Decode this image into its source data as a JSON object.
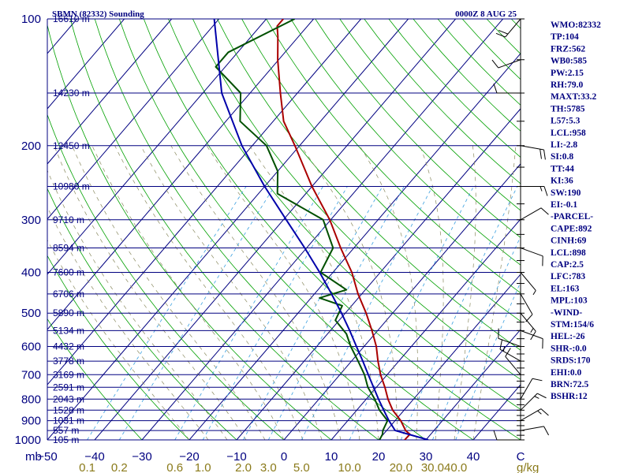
{
  "header": {
    "station": "SBMN (82332) Sounding",
    "time": "0000Z  8 AUG 25"
  },
  "axes": {
    "pressure_unit": "mb",
    "mixing_ratio_unit": "g/kg",
    "temperature_unit": "C",
    "pressure_ticks": [
      100,
      200,
      300,
      400,
      500,
      600,
      700,
      800,
      900,
      1000
    ],
    "temperature_ticks": [
      -50,
      -40,
      -30,
      -20,
      -10,
      0,
      10,
      20,
      30,
      40
    ],
    "mixing_ratio_labels": [
      "0.1",
      "0.2",
      "0.6",
      "1.0",
      "2.0",
      "3.0",
      "5.0",
      "10.0",
      "20.0",
      "30.0",
      "40.0"
    ],
    "pressure_range": [
      100,
      1000
    ],
    "temperature_range_at_surface": [
      -50,
      50
    ]
  },
  "heights": [
    {
      "p": 100,
      "label": "16610 m"
    },
    {
      "p": 150,
      "label": "14230 m"
    },
    {
      "p": 200,
      "label": "12450 m"
    },
    {
      "p": 250,
      "label": "10980 m"
    },
    {
      "p": 300,
      "label": "9710 m"
    },
    {
      "p": 350,
      "label": "8594 m"
    },
    {
      "p": 400,
      "label": "7600 m"
    },
    {
      "p": 450,
      "label": "6706 m"
    },
    {
      "p": 500,
      "label": "5890 m"
    },
    {
      "p": 550,
      "label": "5134 m"
    },
    {
      "p": 600,
      "label": "4432 m"
    },
    {
      "p": 650,
      "label": "3778 m"
    },
    {
      "p": 700,
      "label": "3169 m"
    },
    {
      "p": 750,
      "label": "2591 m"
    },
    {
      "p": 800,
      "label": "2043 m"
    },
    {
      "p": 850,
      "label": "1528 m"
    },
    {
      "p": 900,
      "label": "1031 m"
    },
    {
      "p": 950,
      "label": "557 m"
    },
    {
      "p": 1000,
      "label": "105 m"
    }
  ],
  "indices": [
    "WMO:82332",
    "TP:104",
    "FRZ:562",
    "WB0:585",
    "PW:2.15",
    "RH:79.0",
    "MAXT:33.2",
    "TH:5785",
    "L57:5.3",
    "LCL:958",
    "LI:-2.8",
    "SI:0.8",
    "TT:44",
    "KI:36",
    "SW:190",
    "EI:-0.1",
    "-PARCEL-",
    "CAPE:892",
    "CINH:69",
    "LCL:898",
    "CAP:2.5",
    "LFC:783",
    "EL:163",
    "MPL:103",
    "-WIND-",
    "STM:154/6",
    "HEL:-26",
    "SHR-:0.0",
    "SRDS:170",
    "EHI:0.0",
    "BRN:72.5",
    "BSHR:12"
  ],
  "chart_data": {
    "type": "line",
    "title": "SBMN (82332) Sounding",
    "xlabel": "C",
    "ylabel": "mb",
    "ylim": [
      1000,
      100
    ],
    "grid": true,
    "colors": {
      "isobar": "#000080",
      "isotherm": "#000080",
      "dry_adiabat": "#00a000",
      "moist_adiabat": "#8a8a60",
      "mixing_ratio": "#3aa0e0",
      "temperature": "#aa0000",
      "dewpoint": "#005000",
      "parcel": "#0000aa",
      "wind": "#000000"
    },
    "series": [
      {
        "key": "temperature",
        "points": [
          [
            1000,
            25.5
          ],
          [
            970,
            25.6
          ],
          [
            950,
            24.0
          ],
          [
            900,
            21.2
          ],
          [
            850,
            17.6
          ],
          [
            800,
            14.6
          ],
          [
            750,
            11.8
          ],
          [
            700,
            8.6
          ],
          [
            650,
            5.6
          ],
          [
            600,
            2.6
          ],
          [
            550,
            -1.2
          ],
          [
            500,
            -5.6
          ],
          [
            450,
            -10.8
          ],
          [
            400,
            -16.0
          ],
          [
            350,
            -22.8
          ],
          [
            300,
            -30.2
          ],
          [
            250,
            -40.0
          ],
          [
            200,
            -51.0
          ],
          [
            175,
            -57.8
          ],
          [
            150,
            -63.6
          ],
          [
            125,
            -70.2
          ],
          [
            110,
            -74.4
          ],
          [
            104,
            -76.4
          ],
          [
            100,
            -76.4
          ]
        ]
      },
      {
        "key": "dewpoint",
        "points": [
          [
            1000,
            20.2
          ],
          [
            970,
            19.8
          ],
          [
            950,
            19.2
          ],
          [
            900,
            18.4
          ],
          [
            850,
            14.8
          ],
          [
            800,
            11.8
          ],
          [
            750,
            8.2
          ],
          [
            700,
            5.2
          ],
          [
            650,
            1.4
          ],
          [
            600,
            -2.8
          ],
          [
            560,
            -6.0
          ],
          [
            520,
            -10.8
          ],
          [
            480,
            -12.0
          ],
          [
            460,
            -18.2
          ],
          [
            440,
            -14.0
          ],
          [
            400,
            -22.6
          ],
          [
            350,
            -24.4
          ],
          [
            300,
            -31.6
          ],
          [
            260,
            -46.0
          ],
          [
            230,
            -50.0
          ],
          [
            200,
            -57.0
          ],
          [
            175,
            -67.0
          ],
          [
            150,
            -72.0
          ],
          [
            130,
            -82.0
          ],
          [
            120,
            -82.0
          ],
          [
            100,
            -74.0
          ]
        ]
      },
      {
        "key": "parcel",
        "points": [
          [
            1000,
            30.5
          ],
          [
            950,
            21.8
          ],
          [
            900,
            18.7
          ],
          [
            850,
            15.7
          ],
          [
            800,
            12.6
          ],
          [
            750,
            9.4
          ],
          [
            700,
            6.0
          ],
          [
            650,
            2.4
          ],
          [
            600,
            -1.6
          ],
          [
            550,
            -5.9
          ],
          [
            500,
            -10.8
          ],
          [
            450,
            -16.4
          ],
          [
            400,
            -22.8
          ],
          [
            350,
            -30.4
          ],
          [
            300,
            -39.4
          ],
          [
            250,
            -50.0
          ],
          [
            200,
            -62.2
          ],
          [
            150,
            -76.0
          ],
          [
            100,
            -91.0
          ]
        ]
      }
    ],
    "wind_barbs": [
      {
        "p": 1000,
        "dir": 270,
        "spd": 10
      },
      {
        "p": 950,
        "dir": 80,
        "spd": 10
      },
      {
        "p": 900,
        "dir": 60,
        "spd": 15
      },
      {
        "p": 850,
        "dir": 45,
        "spd": 15
      },
      {
        "p": 800,
        "dir": 30,
        "spd": 10
      },
      {
        "p": 700,
        "dir": 320,
        "spd": 10
      },
      {
        "p": 650,
        "dir": 300,
        "spd": 15
      },
      {
        "p": 600,
        "dir": 290,
        "spd": 10
      },
      {
        "p": 550,
        "dir": 110,
        "spd": 10
      },
      {
        "p": 500,
        "dir": 140,
        "spd": 15
      },
      {
        "p": 450,
        "dir": 150,
        "spd": 10
      },
      {
        "p": 400,
        "dir": 140,
        "spd": 5
      },
      {
        "p": 350,
        "dir": 110,
        "spd": 10
      },
      {
        "p": 300,
        "dir": 60,
        "spd": 10
      },
      {
        "p": 250,
        "dir": 90,
        "spd": 15
      },
      {
        "p": 200,
        "dir": 100,
        "spd": 20
      },
      {
        "p": 150,
        "dir": 270,
        "spd": 10
      },
      {
        "p": 125,
        "dir": 250,
        "spd": 10
      },
      {
        "p": 100,
        "dir": 220,
        "spd": 20
      }
    ]
  }
}
